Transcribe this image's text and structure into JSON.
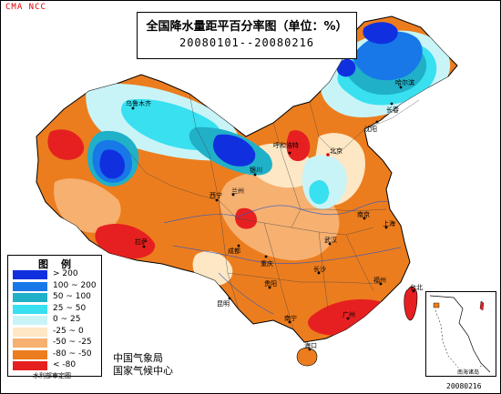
{
  "header": {
    "corner_label": "CMA NCC",
    "title": "全国降水量距平百分率图（单位：%）",
    "date_range": "20080101--20080216"
  },
  "legend": {
    "title": "图例",
    "items": [
      {
        "label": "> 200",
        "color": "#1030e0"
      },
      {
        "label": "100 ~ 200",
        "color": "#1878e8"
      },
      {
        "label": "50 ~ 100",
        "color": "#20b0c8"
      },
      {
        "label": "25 ~ 50",
        "color": "#38e0f0"
      },
      {
        "label": "0 ~ 25",
        "color": "#c8f4f8"
      },
      {
        "label": "-25 ~ 0",
        "color": "#fde7c4"
      },
      {
        "label": "-50 ~ -25",
        "color": "#f6b070"
      },
      {
        "label": "-80 ~ -50",
        "color": "#ec7d1e"
      },
      {
        "label": "< -80",
        "color": "#e62020"
      }
    ]
  },
  "footer": {
    "agency_line1": "中国气象局",
    "agency_line2": "国家气候中心",
    "credit": "水利部审定图",
    "inset_label": "南海诸岛",
    "date_stamp": "20080216"
  },
  "cities": [
    {
      "name": "乌鲁木齐"
    },
    {
      "name": "拉萨"
    },
    {
      "name": "西宁"
    },
    {
      "name": "兰州"
    },
    {
      "name": "银川"
    },
    {
      "name": "呼和浩特"
    },
    {
      "name": "北京"
    },
    {
      "name": "哈尔滨"
    },
    {
      "name": "长春"
    },
    {
      "name": "沈阳"
    },
    {
      "name": "成都"
    },
    {
      "name": "重庆"
    },
    {
      "name": "昆明"
    },
    {
      "name": "贵阳"
    },
    {
      "name": "南宁"
    },
    {
      "name": "广州"
    },
    {
      "name": "长沙"
    },
    {
      "name": "武汉"
    },
    {
      "name": "南京"
    },
    {
      "name": "上海"
    },
    {
      "name": "福州"
    },
    {
      "name": "台北"
    },
    {
      "name": "海口"
    }
  ]
}
